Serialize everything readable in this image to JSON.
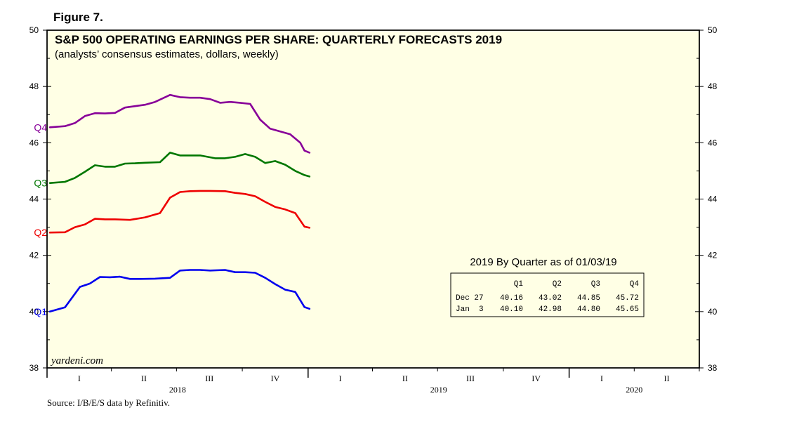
{
  "figure_label": "Figure 7.",
  "source": "Source: I/B/E/S data by Refinitiv.",
  "watermark": "yardeni.com",
  "chart_data": {
    "type": "line",
    "title": "S&P 500 OPERATING EARNINGS PER SHARE: QUARTERLY FORECASTS 2019",
    "subtitle": "(analysts’ consensus estimates, dollars, weekly)",
    "ylim": [
      38,
      50
    ],
    "y_ticks": [
      "38",
      "40",
      "42",
      "44",
      "46",
      "48",
      "50"
    ],
    "x_start": "2018-01",
    "x_end": "2020-07",
    "quarter_ticks": [
      "I",
      "II",
      "III",
      "IV",
      "I",
      "II",
      "III",
      "IV",
      "I",
      "II"
    ],
    "year_labels": [
      "2018",
      "2019",
      "2020"
    ],
    "background": "#ffffe5",
    "grid": false,
    "series": [
      {
        "name": "Q1",
        "color": "#0000ee",
        "dates": [
          "2018-01-05",
          "2018-01-26",
          "2018-02-16",
          "2018-03-02",
          "2018-03-16",
          "2018-03-30",
          "2018-04-13",
          "2018-04-27",
          "2018-05-11",
          "2018-06-01",
          "2018-06-22",
          "2018-07-06",
          "2018-07-20",
          "2018-08-03",
          "2018-08-17",
          "2018-09-07",
          "2018-09-21",
          "2018-10-05",
          "2018-10-19",
          "2018-11-02",
          "2018-11-16",
          "2018-11-30",
          "2018-12-14",
          "2018-12-27",
          "2019-01-03"
        ],
        "values": [
          40.0,
          40.15,
          40.88,
          41.0,
          41.23,
          41.22,
          41.24,
          41.16,
          41.16,
          41.17,
          41.2,
          41.46,
          41.48,
          41.48,
          41.46,
          41.48,
          41.4,
          41.4,
          41.38,
          41.2,
          40.98,
          40.78,
          40.7,
          40.16,
          40.1
        ]
      },
      {
        "name": "Q2",
        "color": "#ee0000",
        "dates": [
          "2018-01-05",
          "2018-01-26",
          "2018-02-09",
          "2018-02-23",
          "2018-03-09",
          "2018-03-23",
          "2018-04-06",
          "2018-04-27",
          "2018-05-18",
          "2018-06-08",
          "2018-06-22",
          "2018-07-06",
          "2018-07-20",
          "2018-08-03",
          "2018-08-17",
          "2018-09-07",
          "2018-09-21",
          "2018-10-05",
          "2018-10-19",
          "2018-11-02",
          "2018-11-16",
          "2018-11-30",
          "2018-12-14",
          "2018-12-27",
          "2019-01-03"
        ],
        "values": [
          42.81,
          42.82,
          43.0,
          43.1,
          43.3,
          43.28,
          43.28,
          43.26,
          43.35,
          43.5,
          44.05,
          44.25,
          44.28,
          44.29,
          44.29,
          44.28,
          44.22,
          44.18,
          44.1,
          43.9,
          43.72,
          43.63,
          43.5,
          43.02,
          42.98
        ]
      },
      {
        "name": "Q3",
        "color": "#007700",
        "dates": [
          "2018-01-05",
          "2018-01-26",
          "2018-02-09",
          "2018-02-23",
          "2018-03-09",
          "2018-03-23",
          "2018-04-06",
          "2018-04-20",
          "2018-05-04",
          "2018-05-18",
          "2018-06-08",
          "2018-06-22",
          "2018-07-06",
          "2018-07-20",
          "2018-08-03",
          "2018-08-24",
          "2018-09-07",
          "2018-09-21",
          "2018-10-05",
          "2018-10-19",
          "2018-11-02",
          "2018-11-16",
          "2018-11-30",
          "2018-12-14",
          "2018-12-27",
          "2019-01-03"
        ],
        "values": [
          44.57,
          44.61,
          44.75,
          44.97,
          45.2,
          45.15,
          45.15,
          45.26,
          45.27,
          45.29,
          45.31,
          45.65,
          45.55,
          45.55,
          45.55,
          45.45,
          45.45,
          45.5,
          45.6,
          45.5,
          45.28,
          45.35,
          45.22,
          45.0,
          44.85,
          44.8
        ]
      },
      {
        "name": "Q4",
        "color": "#880099",
        "dates": [
          "2018-01-05",
          "2018-01-26",
          "2018-02-09",
          "2018-02-23",
          "2018-03-09",
          "2018-03-23",
          "2018-04-06",
          "2018-04-20",
          "2018-05-04",
          "2018-05-18",
          "2018-06-01",
          "2018-06-22",
          "2018-07-06",
          "2018-07-20",
          "2018-08-03",
          "2018-08-17",
          "2018-08-31",
          "2018-09-14",
          "2018-09-28",
          "2018-10-12",
          "2018-10-26",
          "2018-11-09",
          "2018-11-23",
          "2018-12-07",
          "2018-12-21",
          "2018-12-27",
          "2019-01-03"
        ],
        "values": [
          46.55,
          46.59,
          46.7,
          46.95,
          47.05,
          47.04,
          47.06,
          47.25,
          47.3,
          47.35,
          47.45,
          47.7,
          47.62,
          47.6,
          47.6,
          47.55,
          47.42,
          47.45,
          47.42,
          47.38,
          46.82,
          46.5,
          46.4,
          46.3,
          46.0,
          45.72,
          45.65
        ]
      }
    ],
    "table": {
      "title": "2019 By Quarter as of 01/03/19",
      "columns": [
        "",
        "Q1",
        "Q2",
        "Q3",
        "Q4"
      ],
      "rows": [
        [
          "Dec 27",
          "40.16",
          "43.02",
          "44.85",
          "45.72"
        ],
        [
          "Jan  3",
          "40.10",
          "42.98",
          "44.80",
          "45.65"
        ]
      ]
    }
  }
}
